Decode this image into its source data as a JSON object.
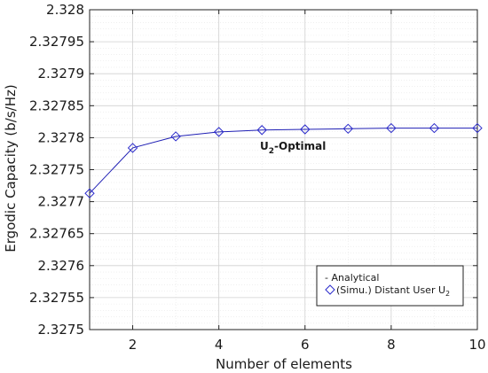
{
  "chart_data": {
    "type": "line",
    "xlabel": "Number of elements",
    "ylabel": "Ergodic Capacity (b/s/Hz)",
    "xlim": [
      1,
      10
    ],
    "ylim": [
      2.3275,
      2.328
    ],
    "xticks": [
      "2",
      "4",
      "6",
      "8",
      "10"
    ],
    "yticks": [
      "2.3275",
      "2.32755",
      "2.3276",
      "2.32765",
      "2.3277",
      "2.32775",
      "2.3278",
      "2.32785",
      "2.3279",
      "2.32795",
      "2.328"
    ],
    "grid": true,
    "x": [
      1,
      2,
      3,
      4,
      5,
      6,
      7,
      8,
      9,
      10
    ],
    "series": [
      {
        "name": "- Analytical",
        "style": "line",
        "values": [
          2.327713,
          2.327784,
          2.327802,
          2.327809,
          2.327812,
          2.327813,
          2.327814,
          2.327815,
          2.327815,
          2.327815
        ]
      },
      {
        "name": "(Simu.) Distant User U",
        "name_sub": "2",
        "style": "markers",
        "marker": "diamond",
        "values": [
          2.327713,
          2.327784,
          2.327802,
          2.327809,
          2.327812,
          2.327813,
          2.327814,
          2.327815,
          2.327815,
          2.327815
        ]
      }
    ],
    "annotation": {
      "text": "U",
      "sub": "2",
      "suffix": "-Optimal"
    },
    "legend_placement": "bottom-right",
    "colors": {
      "line": "#1f1fb4",
      "marker": "#2a2acb",
      "grid_major": "#d0d0d0",
      "grid_minor": "#e6e6e6"
    }
  }
}
